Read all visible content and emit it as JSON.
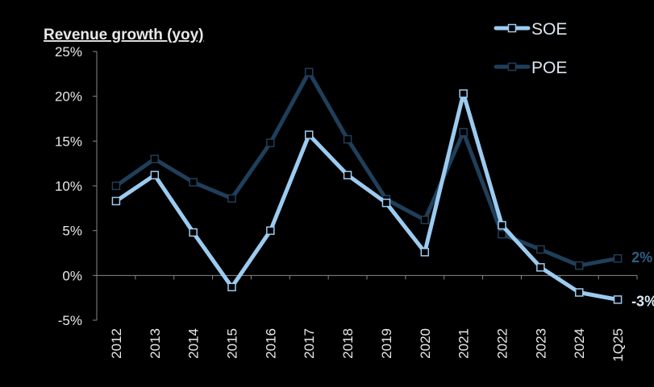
{
  "chart_data": {
    "type": "line",
    "title": "Revenue growth (yoy)",
    "xlabel": "",
    "ylabel": "",
    "categories": [
      "2012",
      "2013",
      "2014",
      "2015",
      "2016",
      "2017",
      "2018",
      "2019",
      "2020",
      "2021",
      "2022",
      "2023",
      "2024",
      "1Q25"
    ],
    "ylim": [
      -5,
      25
    ],
    "yticks": [
      -5,
      0,
      5,
      10,
      15,
      20,
      25
    ],
    "ytick_labels": [
      "-5%",
      "0%",
      "5%",
      "10%",
      "15%",
      "20%",
      "25%"
    ],
    "grid": false,
    "legend_position": "top-right",
    "series": [
      {
        "name": "SOE",
        "color": "#9ccbf0",
        "values": [
          8.3,
          11.2,
          4.8,
          -1.3,
          5.0,
          15.7,
          11.2,
          8.1,
          2.6,
          20.3,
          5.6,
          0.9,
          -1.9,
          -2.7
        ],
        "end_label": "-3%",
        "end_label_color": "#dce9f5"
      },
      {
        "name": "POE",
        "color": "#1f3f5a",
        "values": [
          10.0,
          13.0,
          10.4,
          8.6,
          14.8,
          22.7,
          15.2,
          8.5,
          6.2,
          16.0,
          4.6,
          2.9,
          1.1,
          1.9
        ],
        "end_label": "2%",
        "end_label_color": "#2f5f82"
      }
    ]
  }
}
